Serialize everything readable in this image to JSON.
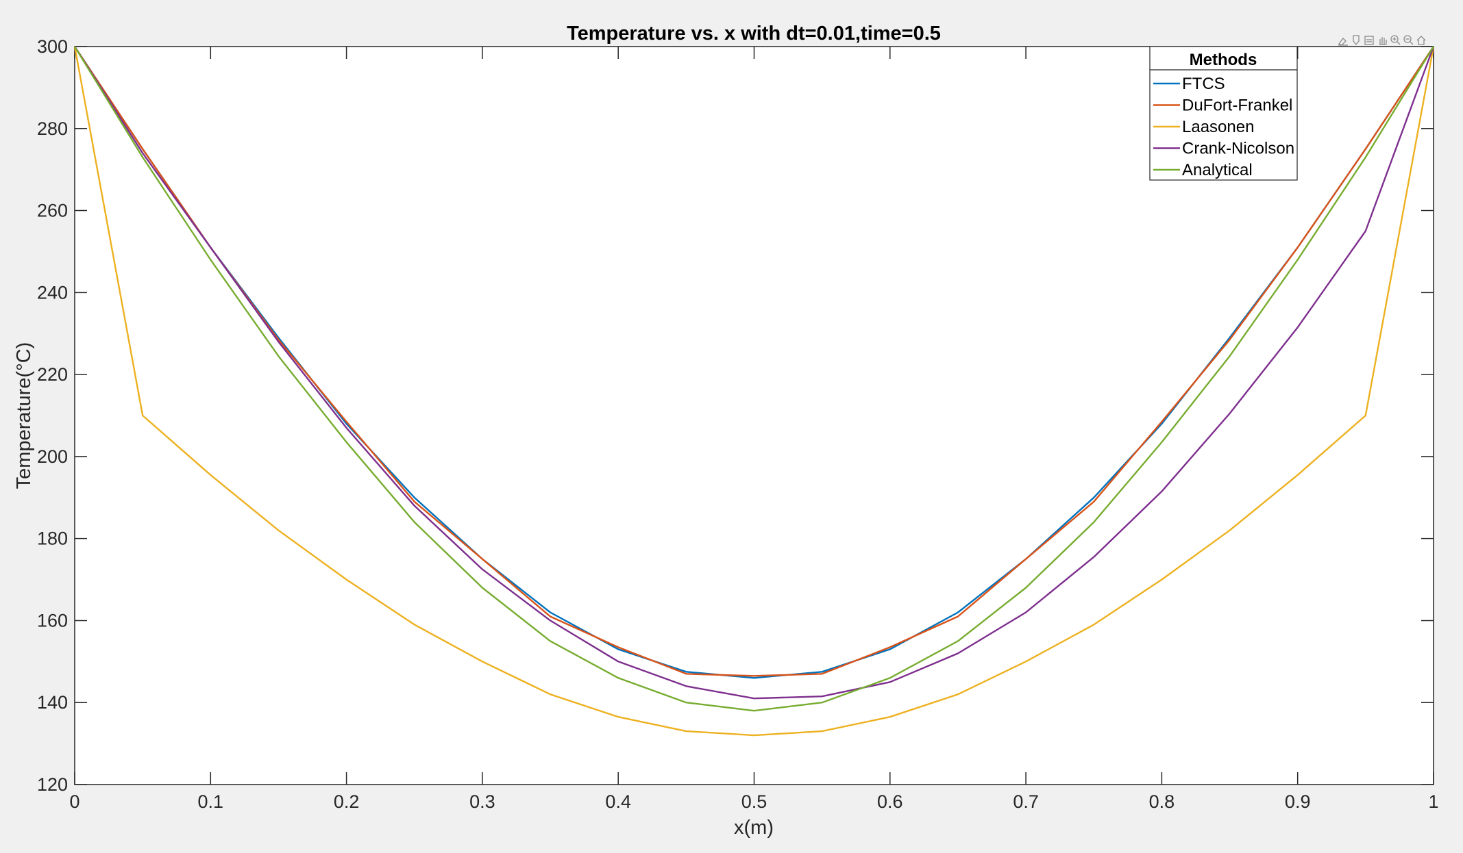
{
  "chart_data": {
    "type": "line",
    "title": "Temperature vs. x with dt=0.01,time=0.5",
    "xlabel": "x(m)",
    "ylabel": "Temperature(°C)",
    "xlim": [
      0,
      1
    ],
    "ylim": [
      120,
      300
    ],
    "xticks": [
      "0",
      "0.1",
      "0.2",
      "0.3",
      "0.4",
      "0.5",
      "0.6",
      "0.7",
      "0.8",
      "0.9",
      "1"
    ],
    "yticks": [
      "120",
      "140",
      "160",
      "180",
      "200",
      "220",
      "240",
      "260",
      "280",
      "300"
    ],
    "grid": false,
    "legend": {
      "title": "Methods",
      "placement": "top-right"
    },
    "x": [
      0,
      0.05,
      0.1,
      0.15,
      0.2,
      0.25,
      0.3,
      0.35,
      0.4,
      0.45,
      0.5,
      0.55,
      0.6,
      0.65,
      0.7,
      0.75,
      0.8,
      0.85,
      0.9,
      0.95,
      1
    ],
    "series": [
      {
        "name": "FTCS",
        "color": "#0072BD",
        "values": [
          300,
          275,
          251,
          229,
          208,
          190,
          175,
          162,
          153,
          147.5,
          146,
          147.5,
          153,
          162,
          175,
          190,
          208,
          229,
          251,
          275,
          300
        ]
      },
      {
        "name": "DuFort-Frankel",
        "color": "#D95319",
        "values": [
          300,
          275,
          251,
          228.5,
          208.5,
          189,
          175,
          161,
          153.5,
          147,
          146.5,
          147,
          153.5,
          161,
          175,
          189,
          208.5,
          228.5,
          251,
          275,
          300
        ]
      },
      {
        "name": "Laasonen",
        "color": "#EDB120",
        "values": [
          300,
          210,
          195.5,
          182,
          170,
          159,
          150,
          142,
          136.5,
          133,
          132,
          133,
          136.5,
          142,
          150,
          159,
          170,
          182,
          195.5,
          210,
          300
        ]
      },
      {
        "name": "Crank-Nicolson",
        "color": "#7E2F8E",
        "values": [
          300,
          274,
          251,
          228,
          207,
          188,
          172.5,
          160,
          150,
          144,
          141,
          141.5,
          145,
          152,
          162,
          175.5,
          191.5,
          210.5,
          231.5,
          255,
          300
        ]
      },
      {
        "name": "Analytical",
        "color": "#77AC30",
        "values": [
          300,
          273,
          248,
          224.5,
          203.5,
          184,
          168,
          155,
          146,
          140,
          138,
          140,
          146,
          155,
          168,
          184,
          203.5,
          224.5,
          248,
          273,
          300
        ]
      }
    ]
  },
  "toolbar": {
    "icons": [
      "brush-icon",
      "datatip-icon",
      "data-cursor-icon",
      "pan-icon",
      "zoom-in-icon",
      "zoom-out-icon",
      "home-icon"
    ]
  }
}
